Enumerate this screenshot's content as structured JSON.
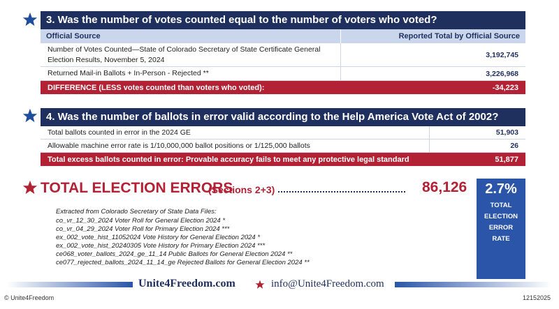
{
  "sections": [
    {
      "title": "3. Was the number of votes counted equal to the number of voters who voted?",
      "header": [
        "Official Source",
        "Reported Total by Official Source"
      ],
      "rows": [
        [
          "Number of Votes Counted—State of Colorado Secretary of State Certificate General Election Results, November 5, 2024",
          "3,192,745"
        ],
        [
          "Returned Mail-in Ballots + In-Person - Rejected **",
          "3,226,968"
        ]
      ],
      "summary": [
        "DIFFERENCE (LESS votes counted than voters who voted):",
        "-34,223"
      ]
    },
    {
      "title": "4. Was the number of ballots in error valid according to the Help America Vote Act of 2002?",
      "rows": [
        [
          "Total ballots counted in error in the 2024 GE",
          "51,903"
        ],
        [
          "Allowable machine error rate is 1/10,000,000 ballot positions or 1/125,000 ballots",
          "26"
        ]
      ],
      "summary": [
        "Total excess ballots counted in error: Provable accuracy fails to meet any protective legal standard",
        "51,877"
      ]
    }
  ],
  "total": {
    "label": "TOTAL ELECTION ERRORS",
    "sections": "(Sections 2+3)",
    "value": "86,126",
    "rate": "2.7%",
    "rate_label": "TOTAL ELECTION ERROR RATE"
  },
  "sources": {
    "intro": "Extracted from Colorado Secretary of State Data Files:",
    "files": [
      "co_vr_12_30_2024 Voter Roll for General Election 2024 *",
      "co_vr_04_29_2024 Voter Roll for Primary Election 2024 ***",
      "ex_002_vote_hist_11052024 Vote History for General Election 2024 *",
      "ex_002_vote_hist_20240305 Vote History for Primary Election 2024 ***",
      "ce068_voter_ballots_2024_ge_11_14 Public Ballots for General Election 2024 **",
      "ce077_rejected_ballots_2024_11_14_ge Rejected Ballots for General Election 2024 **"
    ]
  },
  "footer": {
    "website": "Unite4Freedom.com",
    "email": "info@Unite4Freedom.com",
    "copyright": "© Unite4Freedom",
    "code": "12152025"
  }
}
